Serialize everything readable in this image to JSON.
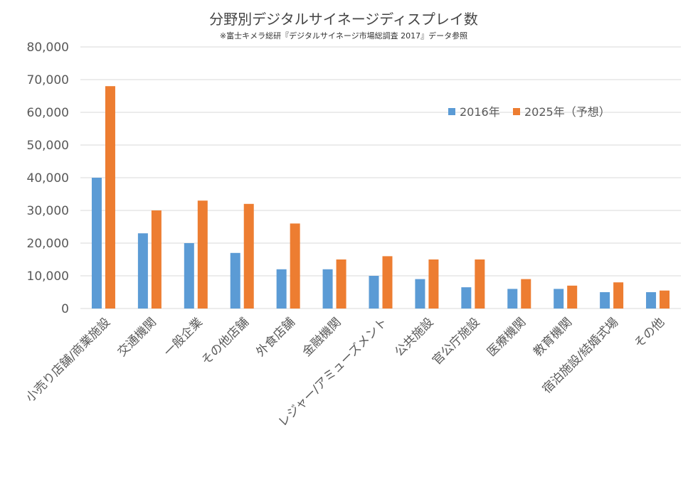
{
  "chart_data": {
    "type": "bar",
    "title": "分野別デジタルサイネージディスプレイ数",
    "subtitle": "※富士キメラ総研『デジタルサイネージ市場総調査 2017』データ参照",
    "xlabel": "",
    "ylabel": "",
    "ylim": [
      0,
      80000
    ],
    "yticks": [
      0,
      10000,
      20000,
      30000,
      40000,
      50000,
      60000,
      70000,
      80000
    ],
    "ytick_labels": [
      "0",
      "10,000",
      "20,000",
      "30,000",
      "40,000",
      "50,000",
      "60,000",
      "70,000",
      "80,000"
    ],
    "grid": true,
    "legend_position": "top-right",
    "categories": [
      "小売り店舗/商業施設",
      "交通機関",
      "一般企業",
      "その他店舗",
      "外食店舗",
      "金融機関",
      "レジャー/アミューズメント",
      "公共施設",
      "官公庁施設",
      "医療機関",
      "教育機関",
      "宿泊施設/結婚式場",
      "その他"
    ],
    "series": [
      {
        "name": "2016年",
        "color": "#5b9bd5",
        "values": [
          40000,
          23000,
          20000,
          17000,
          12000,
          12000,
          10000,
          9000,
          6500,
          6000,
          6000,
          5000,
          5000
        ]
      },
      {
        "name": "2025年（予想）",
        "color": "#ed7d31",
        "values": [
          68000,
          30000,
          33000,
          32000,
          26000,
          15000,
          16000,
          15000,
          15000,
          9000,
          7000,
          8000,
          5500
        ]
      }
    ]
  }
}
